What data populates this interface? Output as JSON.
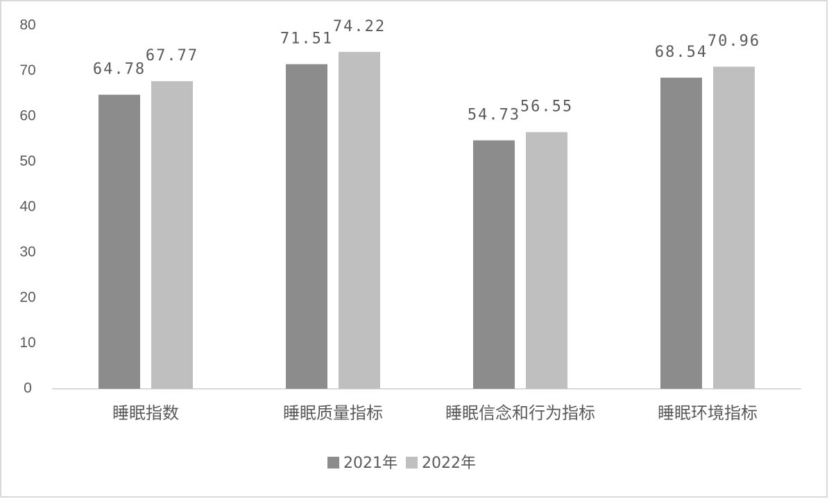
{
  "chart_data": {
    "type": "bar",
    "categories": [
      "睡眠指数",
      "睡眠质量指标",
      "睡眠信念和行为指标",
      "睡眠环境指标"
    ],
    "series": [
      {
        "name": "2021年",
        "color": "#8c8c8c",
        "values": [
          64.78,
          71.51,
          54.73,
          68.54
        ]
      },
      {
        "name": "2022年",
        "color": "#bfbfbf",
        "values": [
          67.77,
          74.22,
          56.55,
          70.96
        ]
      }
    ],
    "ylim": [
      0,
      80
    ],
    "yticks": [
      0,
      10,
      20,
      30,
      40,
      50,
      60,
      70,
      80
    ],
    "grid": false,
    "legend": "bottom"
  }
}
